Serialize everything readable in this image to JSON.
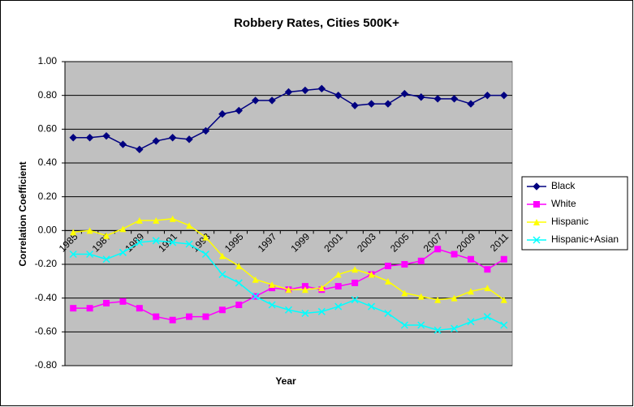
{
  "chart_data": {
    "type": "line",
    "title": "Robbery Rates, Cities 500K+",
    "xlabel": "Year",
    "ylabel": "Correlation Coefficient",
    "categories": [
      "1985",
      null,
      "1987",
      null,
      "1989",
      null,
      "1991",
      null,
      "1993",
      null,
      "1995",
      null,
      "1997",
      null,
      "1999",
      null,
      "2001",
      null,
      "2003",
      null,
      "2005",
      null,
      "2007",
      null,
      "2009",
      null,
      "2011"
    ],
    "series": [
      {
        "name": "Black",
        "color": "#000080",
        "marker": "diamond",
        "values": [
          0.55,
          0.55,
          0.56,
          0.51,
          0.48,
          0.53,
          0.55,
          0.54,
          0.59,
          0.69,
          0.71,
          0.77,
          0.77,
          0.82,
          0.83,
          0.84,
          0.8,
          0.74,
          0.75,
          0.75,
          0.81,
          0.79,
          0.78,
          0.78,
          0.75,
          0.8,
          0.8
        ]
      },
      {
        "name": "White",
        "color": "#ff00ff",
        "marker": "square",
        "values": [
          -0.46,
          -0.46,
          -0.43,
          -0.42,
          -0.46,
          -0.51,
          -0.53,
          -0.51,
          -0.51,
          -0.47,
          -0.44,
          -0.39,
          -0.34,
          -0.35,
          -0.33,
          -0.35,
          -0.33,
          -0.31,
          -0.26,
          -0.21,
          -0.2,
          -0.18,
          -0.11,
          -0.14,
          -0.17,
          -0.23,
          -0.17
        ]
      },
      {
        "name": "Hispanic",
        "color": "#ffff00",
        "marker": "triangle",
        "values": [
          -0.01,
          0.0,
          -0.03,
          0.01,
          0.06,
          0.06,
          0.07,
          0.03,
          -0.04,
          -0.15,
          -0.21,
          -0.29,
          -0.32,
          -0.35,
          -0.35,
          -0.34,
          -0.26,
          -0.23,
          -0.26,
          -0.3,
          -0.37,
          -0.39,
          -0.41,
          -0.4,
          -0.36,
          -0.34,
          -0.41
        ]
      },
      {
        "name": "Hispanic+Asian",
        "color": "#00ffff",
        "marker": "x",
        "values": [
          -0.14,
          -0.14,
          -0.17,
          -0.13,
          -0.07,
          -0.06,
          -0.07,
          -0.08,
          -0.14,
          -0.26,
          -0.31,
          -0.39,
          -0.44,
          -0.47,
          -0.49,
          -0.48,
          -0.45,
          -0.41,
          -0.45,
          -0.49,
          -0.56,
          -0.56,
          -0.59,
          -0.58,
          -0.54,
          -0.51,
          -0.56
        ]
      }
    ],
    "ylim": [
      -0.8,
      1.0
    ],
    "yticks": [
      {
        "value": -0.8,
        "label": "-0.80"
      },
      {
        "value": -0.6,
        "label": "-0.60"
      },
      {
        "value": -0.4,
        "label": "-0.40"
      },
      {
        "value": -0.2,
        "label": "-0.20"
      },
      {
        "value": 0,
        "label": "0.00"
      },
      {
        "value": 0.2,
        "label": "0.20"
      },
      {
        "value": 0.4,
        "label": "0.40"
      },
      {
        "value": 0.6,
        "label": "0.60"
      },
      {
        "value": 0.8,
        "label": "0.80"
      },
      {
        "value": 1.0,
        "label": "1.00"
      }
    ],
    "grid": true,
    "legend": "right",
    "plot_background": "#c0c0c0"
  }
}
